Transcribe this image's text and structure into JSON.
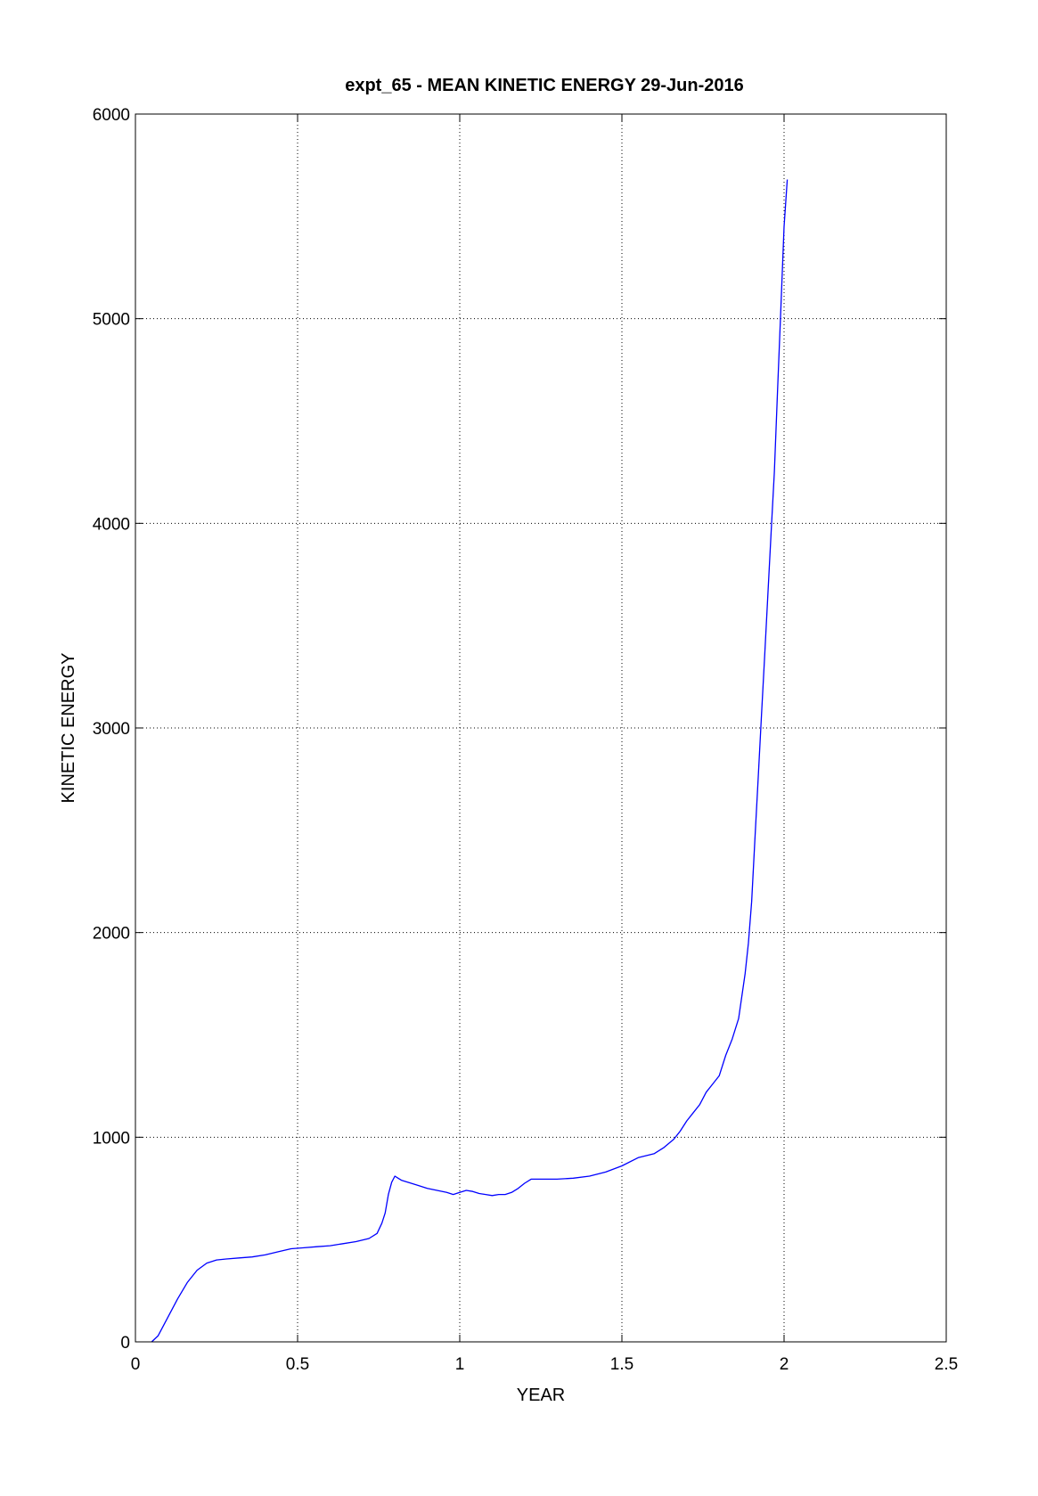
{
  "chart_data": {
    "type": "line",
    "title": "expt_65 - MEAN KINETIC ENERGY 29-Jun-2016",
    "xlabel": "YEAR",
    "ylabel": "KINETIC ENERGY",
    "xlim": [
      0,
      2.5
    ],
    "ylim": [
      0,
      6000
    ],
    "xticks": [
      0,
      0.5,
      1,
      1.5,
      2,
      2.5
    ],
    "xtick_labels": [
      "0",
      "0.5",
      "1",
      "1.5",
      "2",
      "2.5"
    ],
    "yticks": [
      0,
      1000,
      2000,
      3000,
      4000,
      5000,
      6000
    ],
    "ytick_labels": [
      "0",
      "1000",
      "2000",
      "3000",
      "4000",
      "5000",
      "6000"
    ],
    "grid": true,
    "grid_style": "dotted",
    "line_color": "#0000ff",
    "frame_color": "#000000",
    "series": [
      {
        "x": [
          0.05,
          0.07,
          0.1,
          0.13,
          0.16,
          0.19,
          0.22,
          0.25,
          0.28,
          0.32,
          0.36,
          0.4,
          0.44,
          0.48,
          0.52,
          0.56,
          0.6,
          0.64,
          0.68,
          0.72,
          0.745,
          0.76,
          0.77,
          0.78,
          0.79,
          0.8,
          0.81,
          0.82,
          0.84,
          0.87,
          0.9,
          0.93,
          0.96,
          0.98,
          1.0,
          1.02,
          1.04,
          1.06,
          1.08,
          1.1,
          1.12,
          1.14,
          1.16,
          1.18,
          1.2,
          1.22,
          1.25,
          1.3,
          1.35,
          1.4,
          1.45,
          1.5,
          1.55,
          1.6,
          1.63,
          1.66,
          1.68,
          1.7,
          1.72,
          1.74,
          1.76,
          1.78,
          1.8,
          1.82,
          1.84,
          1.86,
          1.88,
          1.89,
          1.9,
          1.91,
          1.92,
          1.93,
          1.94,
          1.95,
          1.96,
          1.97,
          1.98,
          1.99,
          2.0,
          2.01
        ],
        "y": [
          0,
          30,
          120,
          210,
          290,
          350,
          385,
          400,
          405,
          410,
          415,
          425,
          440,
          455,
          460,
          465,
          470,
          480,
          490,
          505,
          530,
          580,
          630,
          720,
          780,
          810,
          800,
          790,
          780,
          765,
          750,
          740,
          730,
          720,
          730,
          740,
          735,
          725,
          720,
          715,
          720,
          720,
          730,
          750,
          775,
          795,
          795,
          795,
          800,
          810,
          830,
          860,
          900,
          920,
          950,
          990,
          1030,
          1080,
          1120,
          1160,
          1220,
          1260,
          1300,
          1400,
          1480,
          1580,
          1800,
          1950,
          2150,
          2450,
          2750,
          3050,
          3350,
          3650,
          3950,
          4250,
          4650,
          5050,
          5450,
          5680
        ]
      }
    ]
  }
}
